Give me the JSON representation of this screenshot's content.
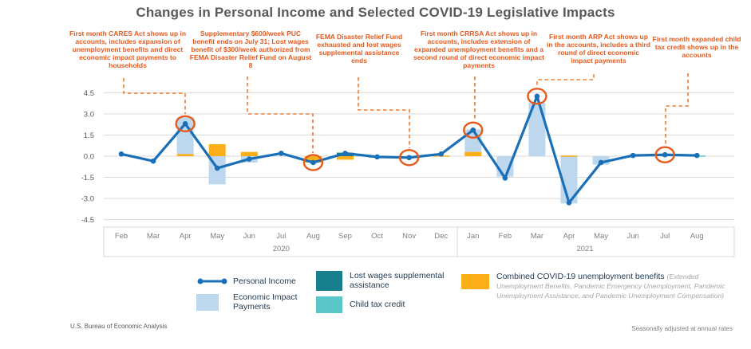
{
  "title": "Changes in Personal Income and Selected COVID-19 Legislative Impacts",
  "annotations": [
    {
      "text": "First month CARES Act shows up in accounts, includes expansion of unemployment benefits and direct economic impact payments to households",
      "target_month": "Apr 2020"
    },
    {
      "text": "Supplementary $600/week PUC benefit ends on July 31; Lost wages benefit of $300/week authorized from FEMA Disaster Relief Fund on August 8",
      "target_month": "Aug 2020"
    },
    {
      "text": "FEMA Disaster Relief Fund exhausted and lost wages supplemental assistance ends",
      "target_month": "Nov 2020"
    },
    {
      "text": "First month CRRSA Act shows up in accounts, includes extension of expanded unemployment benefits and a second round of direct economic impact payments",
      "target_month": "Jan 2021"
    },
    {
      "text": "First month ARP Act shows up in the accounts, includes a third round of direct economic impact payments",
      "target_month": "Mar 2021"
    },
    {
      "text": "First month expanded child tax credit shows up in the accounts",
      "target_month": "Jul 2021"
    }
  ],
  "chart_data": {
    "type": "bar",
    "subtype": "combo-line-and-bars",
    "title": "Changes in Personal Income and Selected COVID-19 Legislative Impacts",
    "categories": [
      "Feb",
      "Mar",
      "Apr",
      "May",
      "Jun",
      "Jul",
      "Aug",
      "Sep",
      "Oct",
      "Nov",
      "Dec",
      "Jan",
      "Feb",
      "Mar",
      "Apr",
      "May",
      "Jun",
      "Jul",
      "Aug"
    ],
    "year_groups": [
      {
        "label": "2020",
        "from": 0,
        "to": 10
      },
      {
        "label": "2021",
        "from": 11,
        "to": 18
      }
    ],
    "ylim": [
      -4.5,
      4.5
    ],
    "yticks": [
      "4.5",
      "3.0",
      "1.5",
      "0.0",
      "-1.5",
      "-3.0",
      "-4.5"
    ],
    "grid": true,
    "legend_position": "bottom",
    "series": [
      {
        "name": "Personal Income",
        "type": "line",
        "color": "#1A70B8",
        "values": [
          0.15,
          -0.35,
          2.3,
          -0.85,
          -0.2,
          0.2,
          -0.45,
          0.2,
          -0.05,
          -0.1,
          0.15,
          1.85,
          -1.55,
          4.25,
          -3.3,
          -0.45,
          0.05,
          0.1,
          0.05
        ]
      },
      {
        "name": "Economic Impact Payments",
        "type": "bar",
        "color": "#BDD7EE",
        "values": [
          0,
          0,
          2.6,
          -2.0,
          -0.45,
          0,
          0,
          0,
          0,
          0,
          0,
          1.6,
          -1.45,
          3.8,
          -3.35,
          -0.6,
          0,
          0,
          0
        ]
      },
      {
        "name": "Combined COVID-19 unemployment benefits",
        "type": "bar",
        "color": "#FBAE17",
        "values": [
          0,
          0,
          0.15,
          0.85,
          0.3,
          0,
          -0.45,
          -0.25,
          0,
          0,
          0.05,
          0.3,
          0,
          0,
          0.05,
          0,
          0,
          0,
          0
        ]
      },
      {
        "name": "Lost wages supplemental assistance",
        "type": "bar",
        "color": "#18808D",
        "values": [
          0,
          0,
          0,
          0,
          0,
          0,
          0,
          0.25,
          -0.1,
          0,
          0,
          0,
          0,
          0,
          0,
          0,
          0,
          0,
          0
        ]
      },
      {
        "name": "Child tax credit",
        "type": "bar",
        "color": "#5BC6C8",
        "values": [
          0,
          0,
          0,
          0,
          0,
          0,
          0,
          0,
          0,
          0,
          0,
          0,
          0,
          0,
          0,
          0,
          0,
          0.1,
          0.05
        ]
      }
    ],
    "circled_point_indices": [
      2,
      6,
      9,
      11,
      13,
      17
    ],
    "annotation_color": "#E8591C",
    "callout_color": "#ED7D31",
    "gridline_color": "#D9D9D9"
  },
  "legend": {
    "personal_income": "Personal Income",
    "economic_impact": "Economic Impact Payments",
    "lost_wages": "Lost wages supplemental assistance",
    "child_tax": "Child tax credit",
    "unemployment_main": "Combined COVID-19 unemployment benefits",
    "unemployment_sub": "(Extended Unemployment Benefits, Pandemic Emergency Unemployment, Pandemic Unemployment Assistance, and Pandemic Unemployment Compensation)"
  },
  "footer": {
    "left": "U.S. Bureau of Economic Analysis",
    "right": "Seasonally adjusted at annual rates"
  }
}
